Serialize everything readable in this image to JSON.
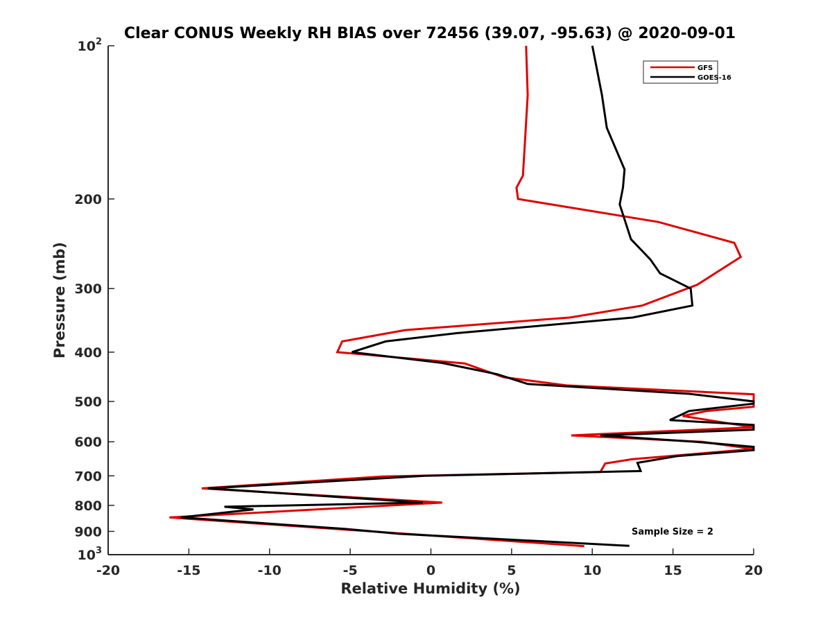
{
  "chart_data": {
    "type": "line",
    "title": "Clear CONUS Weekly RH BIAS over 72456 (39.07, -95.63) @ 2020-09-01",
    "xlabel": "Relative Humidity (%)",
    "ylabel": "Pressure (mb)",
    "xlim": [
      -20,
      20
    ],
    "ylim": [
      100,
      1000
    ],
    "yscale": "log",
    "y_reversed": true,
    "x_ticks": [
      -20,
      -15,
      -10,
      -5,
      0,
      5,
      10,
      15,
      20
    ],
    "x_tick_labels": [
      "-20",
      "-15",
      "-10",
      "-5",
      "0",
      "5",
      "10",
      "15",
      "20"
    ],
    "y_ticks": [
      100,
      200,
      300,
      400,
      500,
      600,
      700,
      800,
      900,
      1000
    ],
    "y_tick_labels": [
      "10^2",
      "200",
      "300",
      "400",
      "500",
      "600",
      "700",
      "800",
      "900",
      "10^3"
    ],
    "y_top_label": {
      "base": "10",
      "exp": "2"
    },
    "y_bottom_label": {
      "base": "10",
      "exp": "3"
    },
    "legend_position": "top-right",
    "annotation": "Sample Size = 2",
    "series": [
      {
        "name": "GFS",
        "color": "#e00000",
        "points": [
          [
            5.9,
            100
          ],
          [
            6.0,
            125
          ],
          [
            5.8,
            160
          ],
          [
            5.7,
            180
          ],
          [
            5.3,
            190
          ],
          [
            5.4,
            200
          ],
          [
            14.1,
            222
          ],
          [
            18.8,
            244
          ],
          [
            19.2,
            260
          ],
          [
            16.5,
            295
          ],
          [
            13.1,
            324
          ],
          [
            8.6,
            342
          ],
          [
            -1.6,
            362
          ],
          [
            -5.5,
            381
          ],
          [
            -5.8,
            400
          ],
          [
            2.1,
            421
          ],
          [
            4.5,
            448
          ],
          [
            8.4,
            465
          ],
          [
            20,
            484
          ],
          [
            20,
            512
          ],
          [
            17.1,
            522
          ],
          [
            15.6,
            534
          ],
          [
            20,
            562
          ],
          [
            8.7,
            583
          ],
          [
            16.8,
            600
          ],
          [
            20,
            620
          ],
          [
            12.5,
            649
          ],
          [
            10.8,
            662
          ],
          [
            10.5,
            688
          ],
          [
            -3.0,
            702
          ],
          [
            -14.2,
            741
          ],
          [
            0.7,
            790
          ],
          [
            -16.2,
            845
          ],
          [
            9.5,
            962
          ]
        ]
      },
      {
        "name": "GOES-16",
        "color": "#000000",
        "points": [
          [
            10.0,
            100
          ],
          [
            10.6,
            125
          ],
          [
            10.9,
            145
          ],
          [
            12.0,
            175
          ],
          [
            11.9,
            190
          ],
          [
            11.7,
            205
          ],
          [
            12.4,
            240
          ],
          [
            13.6,
            263
          ],
          [
            14.2,
            280
          ],
          [
            16.1,
            300
          ],
          [
            16.2,
            324
          ],
          [
            12.5,
            342
          ],
          [
            1.6,
            367
          ],
          [
            -2.8,
            381
          ],
          [
            -4.9,
            400
          ],
          [
            0.7,
            420
          ],
          [
            4.1,
            442
          ],
          [
            6.0,
            462
          ],
          [
            16.0,
            483
          ],
          [
            20,
            500
          ],
          [
            20,
            505
          ],
          [
            16.0,
            522
          ],
          [
            14.8,
            544
          ],
          [
            20,
            556
          ],
          [
            20,
            568
          ],
          [
            10.5,
            583
          ],
          [
            16.4,
            600
          ],
          [
            20,
            614
          ],
          [
            20,
            623
          ],
          [
            15.3,
            640
          ],
          [
            12.8,
            660
          ],
          [
            13.0,
            685
          ],
          [
            -0.4,
            700
          ],
          [
            -13.8,
            741
          ],
          [
            -0.5,
            790
          ],
          [
            -12.8,
            805
          ],
          [
            -11.0,
            815
          ],
          [
            -15.5,
            845
          ],
          [
            -5.3,
            890
          ],
          [
            -2.0,
            910
          ],
          [
            12.3,
            961
          ]
        ]
      }
    ]
  }
}
